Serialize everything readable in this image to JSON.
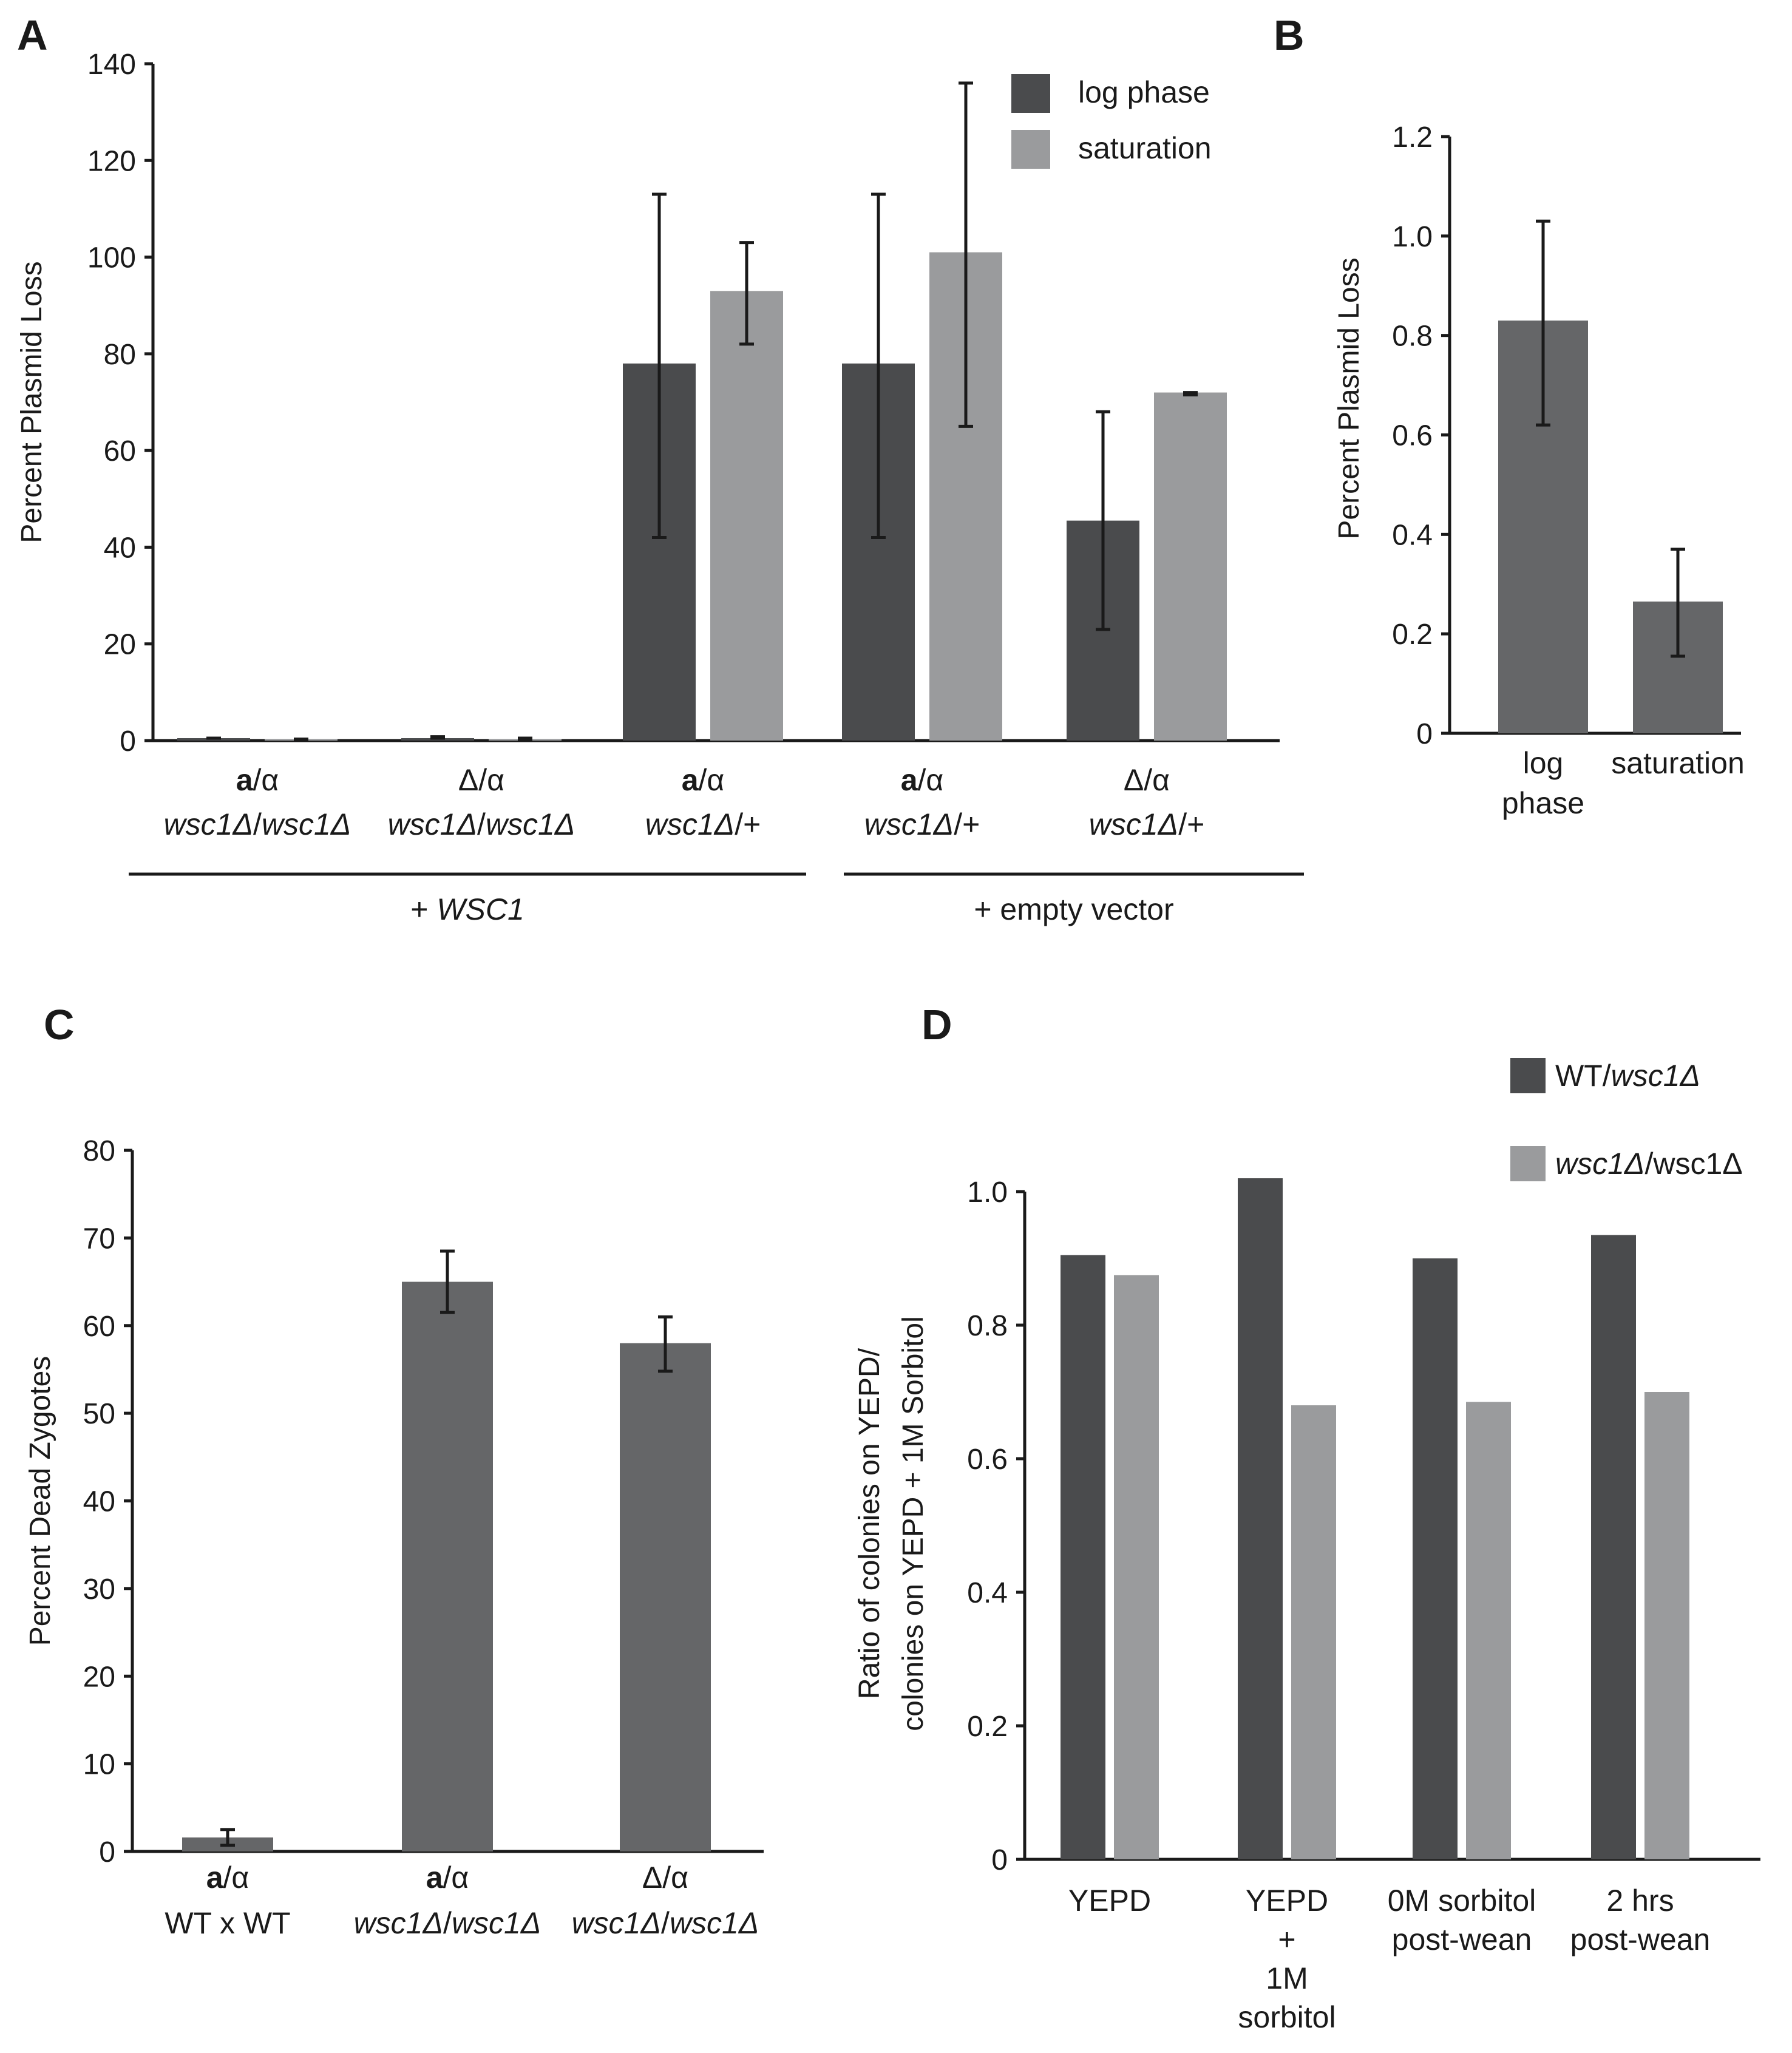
{
  "colors": {
    "dark": "#4a4b4d",
    "light": "#9a9b9d",
    "medium": "#656668",
    "axis": "#1a1a1a"
  },
  "chart_data": [
    {
      "panel": "A",
      "type": "bar",
      "ylabel": "Percent Plasmid Loss",
      "ylim": [
        0,
        140
      ],
      "yticks": [
        0,
        20,
        40,
        60,
        80,
        100,
        120,
        140
      ],
      "legend_position": "top-right",
      "categories": [
        {
          "line1_bold": "a",
          "line1_rest": "/α",
          "line2_italic": "wsc1Δ",
          "line2_rest": "/",
          "line2_italic2": "wsc1Δ"
        },
        {
          "line1_bold": "",
          "line1_rest": "Δ/α",
          "line2_italic": "wsc1Δ",
          "line2_rest": "/",
          "line2_italic2": "wsc1Δ"
        },
        {
          "line1_bold": "a",
          "line1_rest": "/α",
          "line2_italic": "wsc1Δ",
          "line2_rest": "/+",
          "line2_italic2": ""
        },
        {
          "line1_bold": "a",
          "line1_rest": "/α",
          "line2_italic": "wsc1Δ",
          "line2_rest": "/+",
          "line2_italic2": ""
        },
        {
          "line1_bold": "",
          "line1_rest": "Δ/α",
          "line2_italic": "wsc1Δ",
          "line2_rest": "/+",
          "line2_italic2": ""
        }
      ],
      "series": [
        {
          "name": "log phase",
          "color": "#4a4b4d",
          "values": [
            0.5,
            0.5,
            78,
            78,
            45.5
          ],
          "err_low": [
            0.5,
            0.5,
            42,
            42,
            23
          ],
          "err_high": [
            0.5,
            0.8,
            113,
            113,
            68
          ]
        },
        {
          "name": "saturation",
          "color": "#9a9b9d",
          "values": [
            0.3,
            0.3,
            93,
            101,
            72
          ],
          "err_low": [
            0.3,
            0.3,
            82,
            65,
            71.5
          ],
          "err_high": [
            0.3,
            0.5,
            103,
            136,
            72
          ]
        }
      ],
      "groups": [
        {
          "prefix": "+ ",
          "label_italic": "WSC1",
          "from_category": 0,
          "to_category": 2
        },
        {
          "prefix": "+ empty vector",
          "label_italic": "",
          "from_category": 3,
          "to_category": 4
        }
      ]
    },
    {
      "panel": "B",
      "type": "bar",
      "ylabel": "Percent Plasmid Loss",
      "ylim": [
        0,
        1.2
      ],
      "yticks": [
        "0",
        "0.2",
        "0.4",
        "0.6",
        "0.8",
        "1.0",
        "1.2"
      ],
      "categories": [
        [
          "log",
          "phase"
        ],
        [
          "saturation"
        ]
      ],
      "values": [
        0.83,
        0.265
      ],
      "err_low": [
        0.62,
        0.155
      ],
      "err_high": [
        1.03,
        0.37
      ],
      "color": "#656668"
    },
    {
      "panel": "C",
      "type": "bar",
      "ylabel": "Percent Dead Zygotes",
      "ylim": [
        0,
        80
      ],
      "yticks": [
        0,
        10,
        20,
        30,
        40,
        50,
        60,
        70,
        80
      ],
      "categories": [
        {
          "line1_bold": "a",
          "line1_rest": "/α",
          "line2_italic": "",
          "line2_rest": "WT x WT",
          "line2_italic2": ""
        },
        {
          "line1_bold": "a",
          "line1_rest": "/α",
          "line2_italic": "wsc1Δ",
          "line2_rest": "/",
          "line2_italic2": "wsc1Δ"
        },
        {
          "line1_bold": "",
          "line1_rest": "Δ/α",
          "line2_italic": "wsc1Δ",
          "line2_rest": "/",
          "line2_italic2": "wsc1Δ"
        }
      ],
      "values": [
        1.6,
        65,
        58
      ],
      "err_low": [
        0.7,
        61.5,
        54.8
      ],
      "err_high": [
        2.5,
        68.5,
        61
      ],
      "color": "#656668"
    },
    {
      "panel": "D",
      "type": "bar",
      "ylabel": [
        "Ratio of colonies on YEPD/",
        "colonies on YEPD + 1M Sorbitol"
      ],
      "ylim": [
        0,
        1.0
      ],
      "yticks": [
        "0",
        "0.2",
        "0.4",
        "0.6",
        "0.8",
        "1.0"
      ],
      "categories": [
        [
          "YEPD"
        ],
        [
          "YEPD",
          "+",
          "1M",
          "sorbitol"
        ],
        [
          "0M sorbitol",
          "post-wean"
        ],
        [
          "2 hrs",
          "post-wean"
        ]
      ],
      "series": [
        {
          "name_italic": "",
          "name_rest": "WT/",
          "name_italic2": "wsc1Δ",
          "color": "#4a4b4d",
          "values": [
            0.905,
            1.02,
            0.9,
            0.935
          ]
        },
        {
          "name_italic": "wsc1Δ",
          "name_rest": "/wsc1Δ",
          "name_italic2": "",
          "color": "#9a9b9d",
          "values": [
            0.875,
            0.68,
            0.685,
            0.7
          ]
        }
      ],
      "legend_position": "top-right"
    }
  ]
}
